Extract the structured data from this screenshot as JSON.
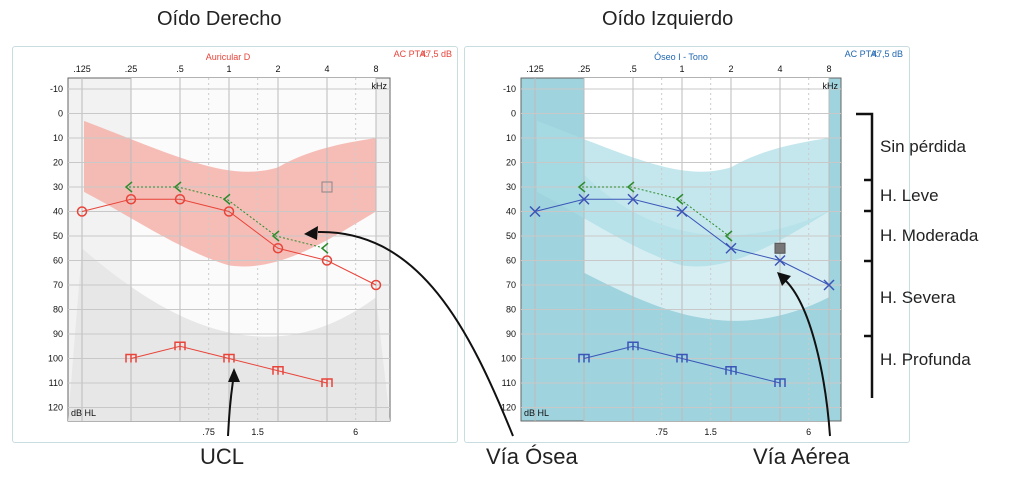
{
  "titles": {
    "right": "Oído Derecho",
    "left": "Oído Izquierdo"
  },
  "bottom_labels": {
    "ucl": "UCL",
    "bone": "Vía Ósea",
    "air": "Vía Aérea"
  },
  "degree_labels": [
    "Sin pérdida",
    "H. Leve",
    "H. Moderada",
    "H. Severa",
    "H. Profunda"
  ],
  "colors": {
    "right_accent": "#e8443a",
    "left_accent": "#3b55b8",
    "bone_green": "#2e8b2e",
    "speech_right": "#f4a8a0",
    "speech_left": "#a9dde6",
    "plot_bg_left": "#9fd3de"
  },
  "chart_data": [
    {
      "type": "line",
      "name": "right-ear-audiogram",
      "header": "Auricular D",
      "pta_label": "AC PTA:",
      "pta_value": "47,5 dB",
      "freq_ticks": [
        ".125",
        ".25",
        ".5",
        "1",
        "2",
        "4",
        "8"
      ],
      "inter_ticks": [
        ".75",
        "1.5",
        "6"
      ],
      "y_ticks": [
        "-10",
        "0",
        "10",
        "20",
        "30",
        "40",
        "50",
        "60",
        "70",
        "80",
        "90",
        "100",
        "110",
        "120"
      ],
      "unit_x": "kHz",
      "unit_y": "dB HL",
      "ylim": [
        -10,
        120
      ],
      "series": [
        {
          "name": "air",
          "symbol": "circle",
          "points": [
            [
              0.125,
              40
            ],
            [
              0.25,
              35
            ],
            [
              0.5,
              35
            ],
            [
              1,
              40
            ],
            [
              2,
              55
            ],
            [
              4,
              60
            ],
            [
              8,
              70
            ]
          ]
        },
        {
          "name": "bone",
          "symbol": "chevron",
          "points": [
            [
              0.25,
              30
            ],
            [
              0.5,
              30
            ],
            [
              1,
              35
            ],
            [
              2,
              50
            ],
            [
              4,
              55
            ]
          ]
        },
        {
          "name": "ucl",
          "symbol": "ucl",
          "points": [
            [
              0.25,
              100
            ],
            [
              0.5,
              95
            ],
            [
              1,
              100
            ],
            [
              2,
              105
            ],
            [
              4,
              110
            ]
          ]
        }
      ],
      "masked_marker": [
        4,
        30
      ]
    },
    {
      "type": "line",
      "name": "left-ear-audiogram",
      "header": "Óseo I - Tono",
      "pta_label": "AC PTA:",
      "pta_value": "47,5 dB",
      "freq_ticks": [
        ".125",
        ".25",
        ".5",
        "1",
        "2",
        "4",
        "8"
      ],
      "inter_ticks": [
        ".75",
        "1.5",
        "6"
      ],
      "y_ticks": [
        "-10",
        "0",
        "10",
        "20",
        "30",
        "40",
        "50",
        "60",
        "70",
        "80",
        "90",
        "100",
        "110",
        "120"
      ],
      "unit_x": "kHz",
      "unit_y": "dB HL",
      "ylim": [
        -10,
        120
      ],
      "series": [
        {
          "name": "air",
          "symbol": "x",
          "points": [
            [
              0.125,
              40
            ],
            [
              0.25,
              35
            ],
            [
              0.5,
              35
            ],
            [
              1,
              40
            ],
            [
              2,
              55
            ],
            [
              4,
              60
            ],
            [
              8,
              70
            ]
          ]
        },
        {
          "name": "bone",
          "symbol": "chevron",
          "points": [
            [
              0.25,
              30
            ],
            [
              0.5,
              30
            ],
            [
              1,
              35
            ],
            [
              2,
              50
            ]
          ]
        },
        {
          "name": "ucl",
          "symbol": "ucl",
          "points": [
            [
              0.25,
              100
            ],
            [
              0.5,
              95
            ],
            [
              1,
              100
            ],
            [
              2,
              105
            ],
            [
              4,
              110
            ]
          ]
        }
      ],
      "masked_marker": [
        4,
        55
      ]
    }
  ]
}
